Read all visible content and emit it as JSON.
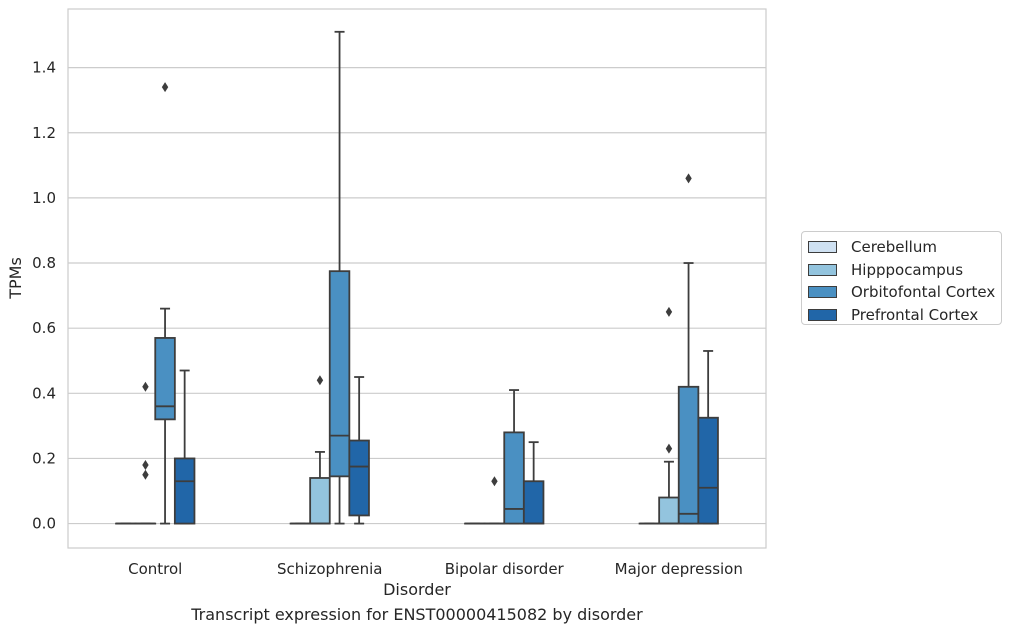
{
  "chart_data": {
    "type": "box",
    "caption": "Transcript expression for ENST00000415082 by disorder",
    "xlabel": "Disorder",
    "ylabel": "TPMs",
    "ylim": [
      -0.075,
      1.58
    ],
    "yticks": [
      "0.0",
      "0.2",
      "0.4",
      "0.6",
      "0.8",
      "1.0",
      "1.2",
      "1.4"
    ],
    "categories": [
      "Control",
      "Schizophrenia",
      "Bipolar disorder",
      "Major depression"
    ],
    "grid": true,
    "legend_position": "right",
    "series": [
      {
        "name": "Cerebellum",
        "color": "#cfe1f2",
        "boxes": [
          {
            "whislo": 0,
            "q1": 0,
            "med": 0,
            "q3": 0,
            "whishi": 0,
            "fliers": []
          },
          {
            "whislo": 0,
            "q1": 0,
            "med": 0,
            "q3": 0,
            "whishi": 0,
            "fliers": []
          },
          {
            "whislo": 0,
            "q1": 0,
            "med": 0,
            "q3": 0,
            "whishi": 0,
            "fliers": []
          },
          {
            "whislo": 0,
            "q1": 0,
            "med": 0,
            "q3": 0,
            "whishi": 0,
            "fliers": []
          }
        ]
      },
      {
        "name": "Hipppocampus",
        "color": "#93c4de",
        "boxes": [
          {
            "whislo": 0,
            "q1": 0,
            "med": 0,
            "q3": 0,
            "whishi": 0,
            "fliers": [
              0.42,
              0.18,
              0.15
            ]
          },
          {
            "whislo": 0,
            "q1": 0,
            "med": 0,
            "q3": 0.14,
            "whishi": 0.22,
            "fliers": [
              0.44
            ]
          },
          {
            "whislo": 0,
            "q1": 0,
            "med": 0,
            "q3": 0,
            "whishi": 0,
            "fliers": [
              0.13
            ]
          },
          {
            "whislo": 0,
            "q1": 0,
            "med": 0,
            "q3": 0.08,
            "whishi": 0.19,
            "fliers": [
              0.65,
              0.23
            ]
          }
        ]
      },
      {
        "name": "Orbitofontal Cortex",
        "color": "#4a90c2",
        "boxes": [
          {
            "whislo": 0,
            "q1": 0.32,
            "med": 0.36,
            "q3": 0.57,
            "whishi": 0.66,
            "fliers": [
              1.34
            ]
          },
          {
            "whislo": 0,
            "q1": 0.145,
            "med": 0.27,
            "q3": 0.775,
            "whishi": 1.51,
            "fliers": []
          },
          {
            "whislo": 0,
            "q1": 0,
            "med": 0.045,
            "q3": 0.28,
            "whishi": 0.41,
            "fliers": []
          },
          {
            "whislo": 0,
            "q1": 0,
            "med": 0.03,
            "q3": 0.42,
            "whishi": 0.8,
            "fliers": [
              1.06
            ]
          }
        ]
      },
      {
        "name": "Prefrontal Cortex",
        "color": "#2166a8",
        "boxes": [
          {
            "whislo": 0,
            "q1": 0,
            "med": 0.13,
            "q3": 0.2,
            "whishi": 0.47,
            "fliers": []
          },
          {
            "whislo": 0,
            "q1": 0.025,
            "med": 0.175,
            "q3": 0.255,
            "whishi": 0.45,
            "fliers": []
          },
          {
            "whislo": 0,
            "q1": 0,
            "med": 0,
            "q3": 0.13,
            "whishi": 0.25,
            "fliers": []
          },
          {
            "whislo": 0,
            "q1": 0,
            "med": 0.11,
            "q3": 0.325,
            "whishi": 0.53,
            "fliers": []
          }
        ]
      }
    ]
  }
}
